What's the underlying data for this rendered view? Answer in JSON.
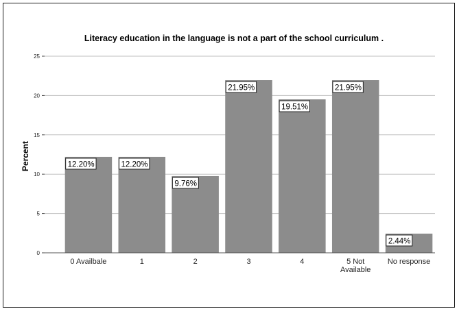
{
  "chart_data": {
    "type": "bar",
    "title": "Literacy education in the language is not a part of the school curriculum .",
    "xlabel": "",
    "ylabel": "Percent",
    "categories": [
      [
        "0 Availbale"
      ],
      [
        "1"
      ],
      [
        "2"
      ],
      [
        "3"
      ],
      [
        "4"
      ],
      [
        "5  Not",
        "Available"
      ],
      [
        "No response"
      ]
    ],
    "values": [
      12.2,
      12.2,
      9.76,
      21.95,
      19.51,
      21.95,
      2.44
    ],
    "data_labels": [
      "12.20%",
      "12.20%",
      "9.76%",
      "21.95%",
      "19.51%",
      "21.95%",
      "2.44%"
    ],
    "ylim": [
      0,
      25
    ],
    "yticks": [
      0,
      5,
      10,
      15,
      20,
      25
    ],
    "grid": true,
    "bar_color": "#8c8c8c",
    "grid_color": "#bfbfbf",
    "legend": "none"
  }
}
